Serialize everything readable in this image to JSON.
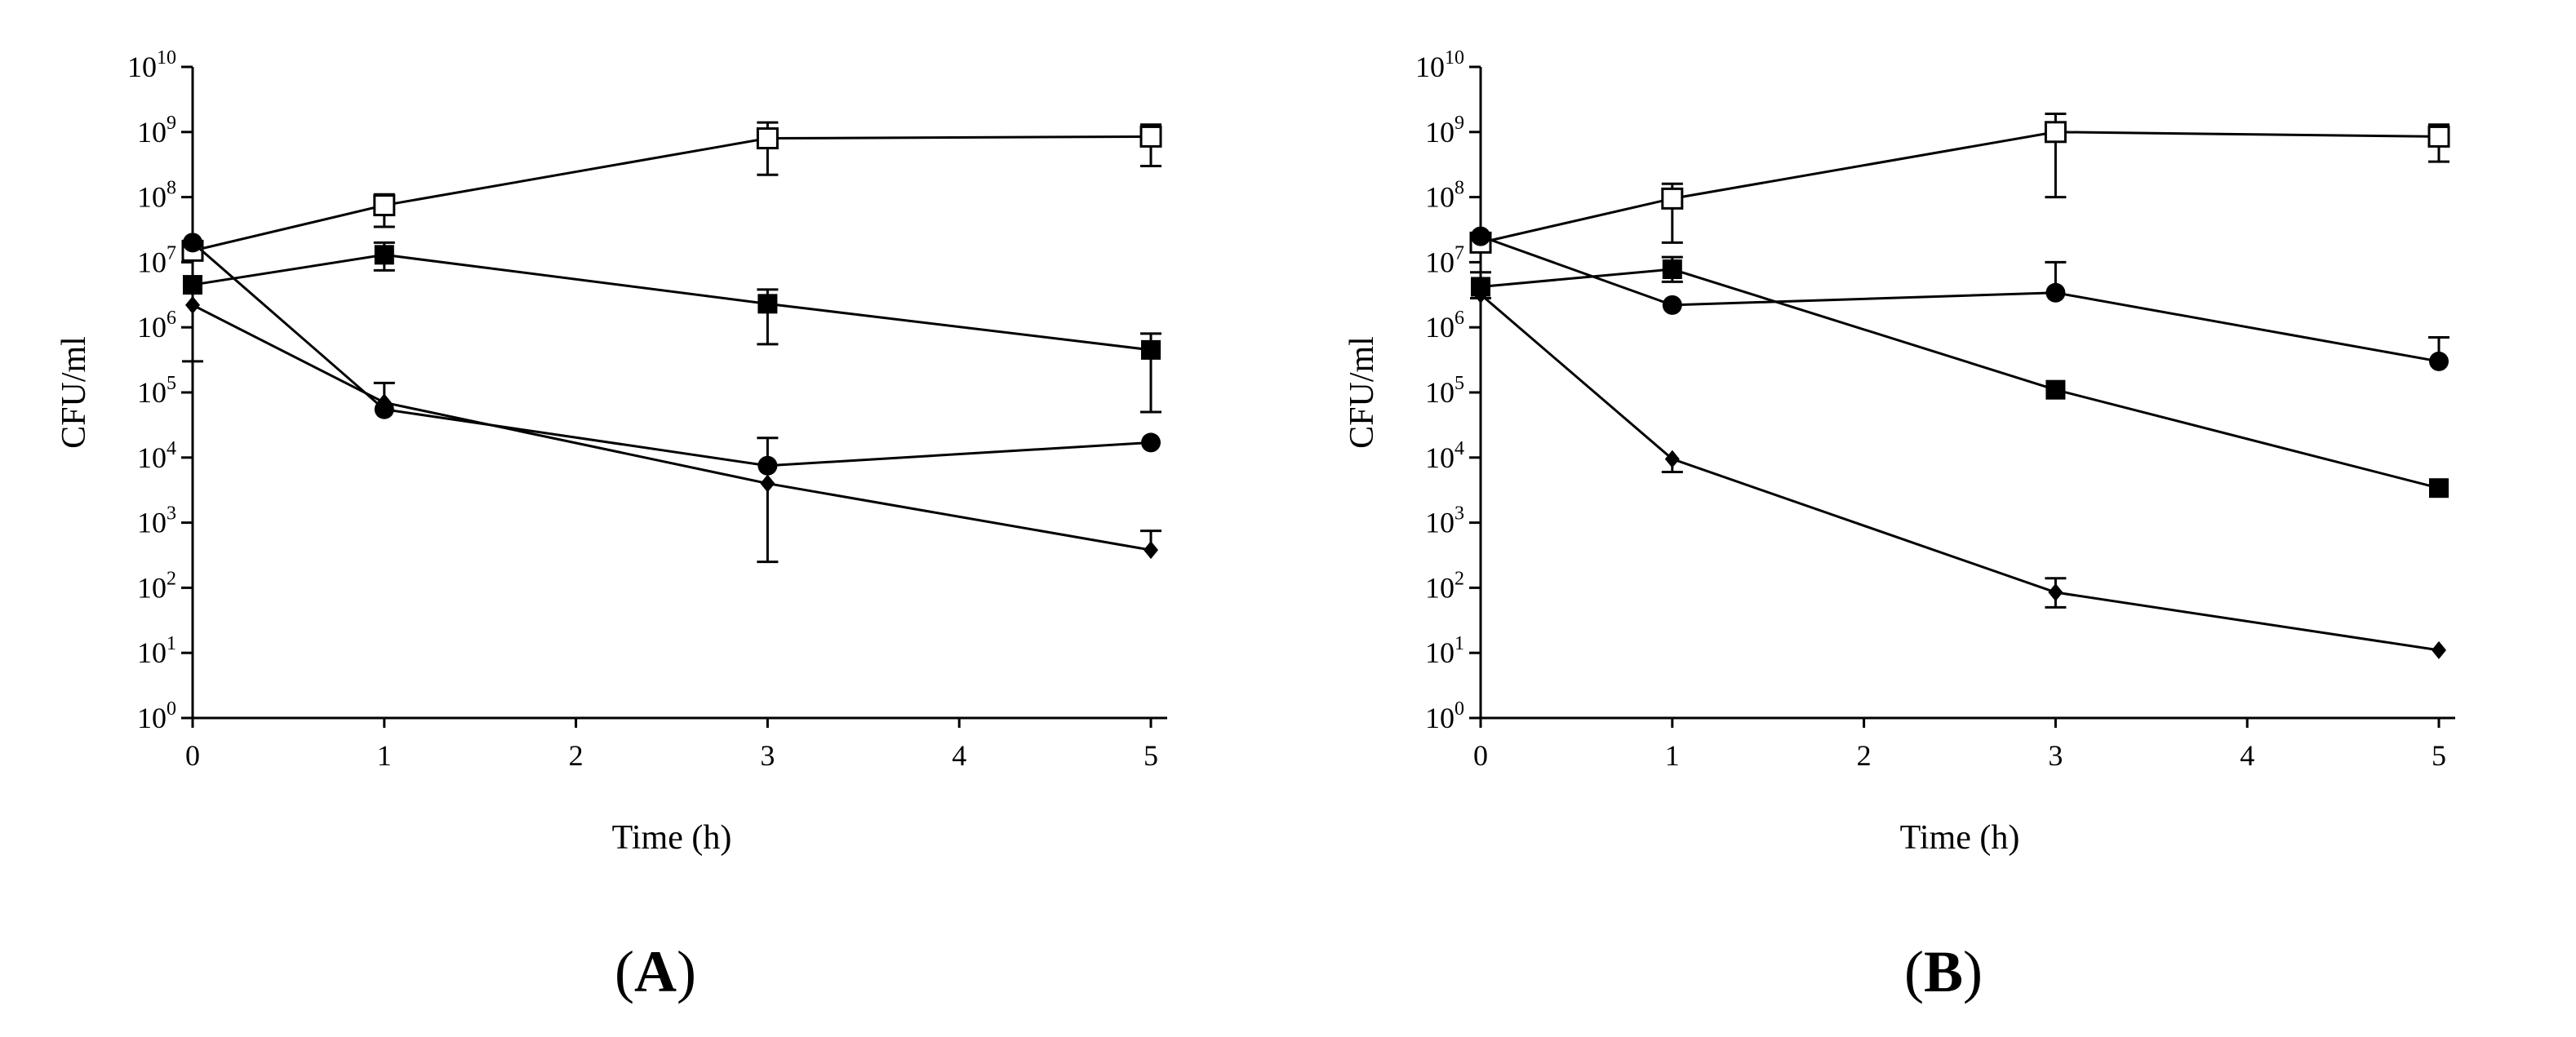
{
  "chart_data": [
    {
      "type": "scatter",
      "panel_label": "A",
      "xlabel": "Time (h)",
      "ylabel": "CFU/ml",
      "xlim": [
        0,
        5
      ],
      "x_ticks": [
        "0",
        "1",
        "2",
        "3",
        "4",
        "5"
      ],
      "y_scale": "log",
      "ylim": [
        1,
        10000000000
      ],
      "y_ticks": [
        {
          "base": "10",
          "exp": "0"
        },
        {
          "base": "10",
          "exp": "1"
        },
        {
          "base": "10",
          "exp": "2"
        },
        {
          "base": "10",
          "exp": "3"
        },
        {
          "base": "10",
          "exp": "4"
        },
        {
          "base": "10",
          "exp": "5"
        },
        {
          "base": "10",
          "exp": "6"
        },
        {
          "base": "10",
          "exp": "7"
        },
        {
          "base": "10",
          "exp": "8"
        },
        {
          "base": "10",
          "exp": "9"
        },
        {
          "base": "10",
          "exp": "10"
        }
      ],
      "grid": false,
      "series": [
        {
          "marker": "open-square",
          "x": [
            0,
            1,
            3,
            5
          ],
          "y": [
            15000000,
            75000000,
            800000000,
            850000000
          ],
          "err_low": [
            null,
            35000000,
            220000000,
            300000000
          ],
          "err_high": [
            null,
            110000000,
            1400000000,
            1300000000
          ]
        },
        {
          "marker": "filled-square",
          "x": [
            0,
            1,
            3,
            5
          ],
          "y": [
            4500000,
            13000000,
            2300000,
            450000
          ],
          "err_low": [
            null,
            7500000,
            550000,
            50000
          ],
          "err_high": [
            null,
            20000000,
            3800000,
            800000
          ]
        },
        {
          "marker": "filled-circle",
          "x": [
            0,
            1,
            3,
            5
          ],
          "y": [
            20000000,
            55000,
            7500,
            17000
          ],
          "err_low": [
            null,
            null,
            null,
            null
          ],
          "err_high": [
            null,
            null,
            20000,
            null
          ]
        },
        {
          "marker": "filled-diamond",
          "x": [
            0,
            1,
            3,
            5
          ],
          "y": [
            2200000,
            70000,
            4000,
            380
          ],
          "err_low": [
            300000,
            null,
            250,
            null
          ],
          "err_high": [
            null,
            140000,
            null,
            750
          ]
        }
      ]
    },
    {
      "type": "scatter",
      "panel_label": "B",
      "xlabel": "Time (h)",
      "ylabel": "CFU/ml",
      "xlim": [
        0,
        5
      ],
      "x_ticks": [
        "0",
        "1",
        "2",
        "3",
        "4",
        "5"
      ],
      "y_scale": "log",
      "ylim": [
        1,
        10000000000
      ],
      "y_ticks": [
        {
          "base": "10",
          "exp": "0"
        },
        {
          "base": "10",
          "exp": "1"
        },
        {
          "base": "10",
          "exp": "2"
        },
        {
          "base": "10",
          "exp": "3"
        },
        {
          "base": "10",
          "exp": "4"
        },
        {
          "base": "10",
          "exp": "5"
        },
        {
          "base": "10",
          "exp": "6"
        },
        {
          "base": "10",
          "exp": "7"
        },
        {
          "base": "10",
          "exp": "8"
        },
        {
          "base": "10",
          "exp": "9"
        },
        {
          "base": "10",
          "exp": "10"
        }
      ],
      "grid": false,
      "series": [
        {
          "marker": "open-square",
          "x": [
            0,
            1,
            3,
            5
          ],
          "y": [
            20000000,
            95000000,
            1000000000,
            850000000
          ],
          "err_low": [
            null,
            20000000,
            100000000,
            350000000
          ],
          "err_high": [
            null,
            160000000,
            1900000000,
            1300000000
          ]
        },
        {
          "marker": "filled-square",
          "x": [
            0,
            1,
            3,
            5
          ],
          "y": [
            4200000,
            7800000,
            110000,
            3400
          ],
          "err_low": [
            2800000,
            5000000,
            null,
            null
          ],
          "err_high": [
            7000000,
            12000000,
            null,
            null
          ]
        },
        {
          "marker": "filled-circle",
          "x": [
            0,
            1,
            3,
            5
          ],
          "y": [
            25000000,
            2200000,
            3400000,
            300000
          ],
          "err_low": [
            null,
            null,
            null,
            null
          ],
          "err_high": [
            null,
            null,
            10000000,
            700000
          ]
        },
        {
          "marker": "filled-diamond",
          "x": [
            0,
            1,
            3,
            5
          ],
          "y": [
            3200000,
            9500,
            85,
            11
          ],
          "err_low": [
            null,
            6000,
            50,
            null
          ],
          "err_high": [
            null,
            null,
            140,
            null
          ]
        }
      ]
    }
  ]
}
